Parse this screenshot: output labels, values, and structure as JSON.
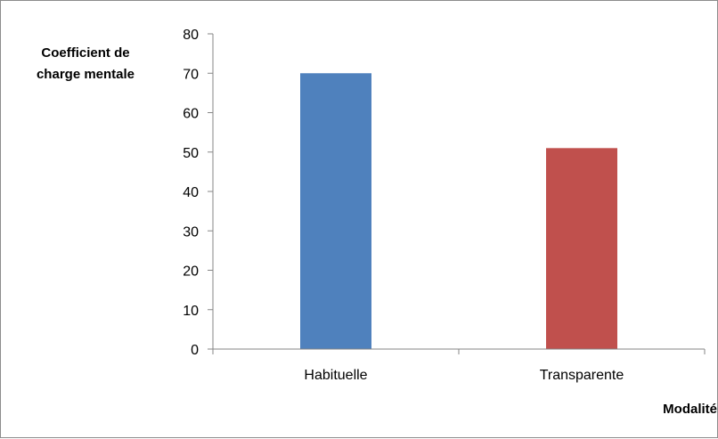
{
  "chart_data": {
    "type": "bar",
    "title": "",
    "categories": [
      "Habituelle",
      "Transparente"
    ],
    "values": [
      70,
      51
    ],
    "bar_colors": [
      "#4f81bd",
      "#c0504d"
    ],
    "ylabel_lines": [
      "Coefficient de",
      "charge mentale"
    ],
    "xlabel": "Modalité",
    "ylim": [
      0,
      80
    ],
    "yticks": [
      0,
      10,
      20,
      30,
      40,
      50,
      60,
      70,
      80
    ],
    "grid": false,
    "legend": "none"
  }
}
